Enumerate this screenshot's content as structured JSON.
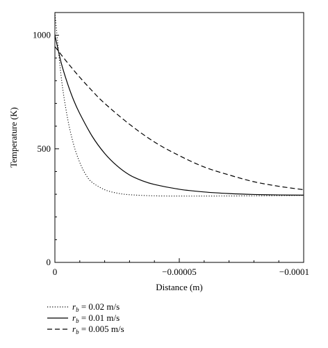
{
  "chart_data": {
    "type": "line",
    "title": "",
    "xlabel": "Distance (m)",
    "ylabel": "Temperature (K)",
    "xlim": [
      0,
      -0.0001
    ],
    "ylim": [
      0,
      1100
    ],
    "x_ticks": [
      {
        "value": 0,
        "label": "0"
      },
      {
        "value": -5e-05,
        "label": "−0.00005"
      },
      {
        "value": -0.0001,
        "label": "−0.0001"
      }
    ],
    "y_ticks": [
      {
        "value": 0,
        "label": "0"
      },
      {
        "value": 500,
        "label": "500"
      },
      {
        "value": 1000,
        "label": "1000"
      }
    ],
    "grid": false,
    "legend_position": "below-left",
    "legend_var": "r",
    "legend_sub": "b",
    "series": [
      {
        "name": "r_b = 0.02 m/s",
        "legend_value": " = 0.02 m/s",
        "dash": "dotted",
        "x": [
          0,
          -2.5e-06,
          -5e-06,
          -7.5e-06,
          -1e-05,
          -1.25e-05,
          -1.5e-05,
          -2e-05,
          -2.5e-05,
          -3e-05,
          -4e-05,
          -5e-05,
          -6e-05,
          -8e-05,
          -0.0001
        ],
        "y": [
          1100,
          820,
          640,
          520,
          440,
          385,
          352,
          320,
          305,
          298,
          293,
          292,
          292,
          293,
          295
        ]
      },
      {
        "name": "r_b = 0.01 m/s",
        "legend_value": " = 0.01 m/s",
        "dash": "solid",
        "x": [
          0,
          -2.5e-06,
          -5e-06,
          -7.5e-06,
          -1e-05,
          -1.5e-05,
          -2e-05,
          -2.5e-05,
          -3e-05,
          -3.5e-05,
          -4e-05,
          -5e-05,
          -6e-05,
          -7e-05,
          -8e-05,
          -9e-05,
          -0.0001
        ],
        "y": [
          1000,
          880,
          790,
          715,
          655,
          555,
          480,
          425,
          385,
          360,
          343,
          322,
          310,
          303,
          299,
          297,
          296
        ]
      },
      {
        "name": "r_b = 0.005 m/s",
        "legend_value": " = 0.005 m/s",
        "dash": "dashed",
        "x": [
          0,
          -5e-06,
          -1e-05,
          -1.5e-05,
          -2e-05,
          -3e-05,
          -4e-05,
          -5e-05,
          -6e-05,
          -7e-05,
          -8e-05,
          -9e-05,
          -0.0001
        ],
        "y": [
          950,
          880,
          815,
          755,
          700,
          608,
          530,
          470,
          420,
          385,
          355,
          335,
          320
        ]
      }
    ]
  }
}
